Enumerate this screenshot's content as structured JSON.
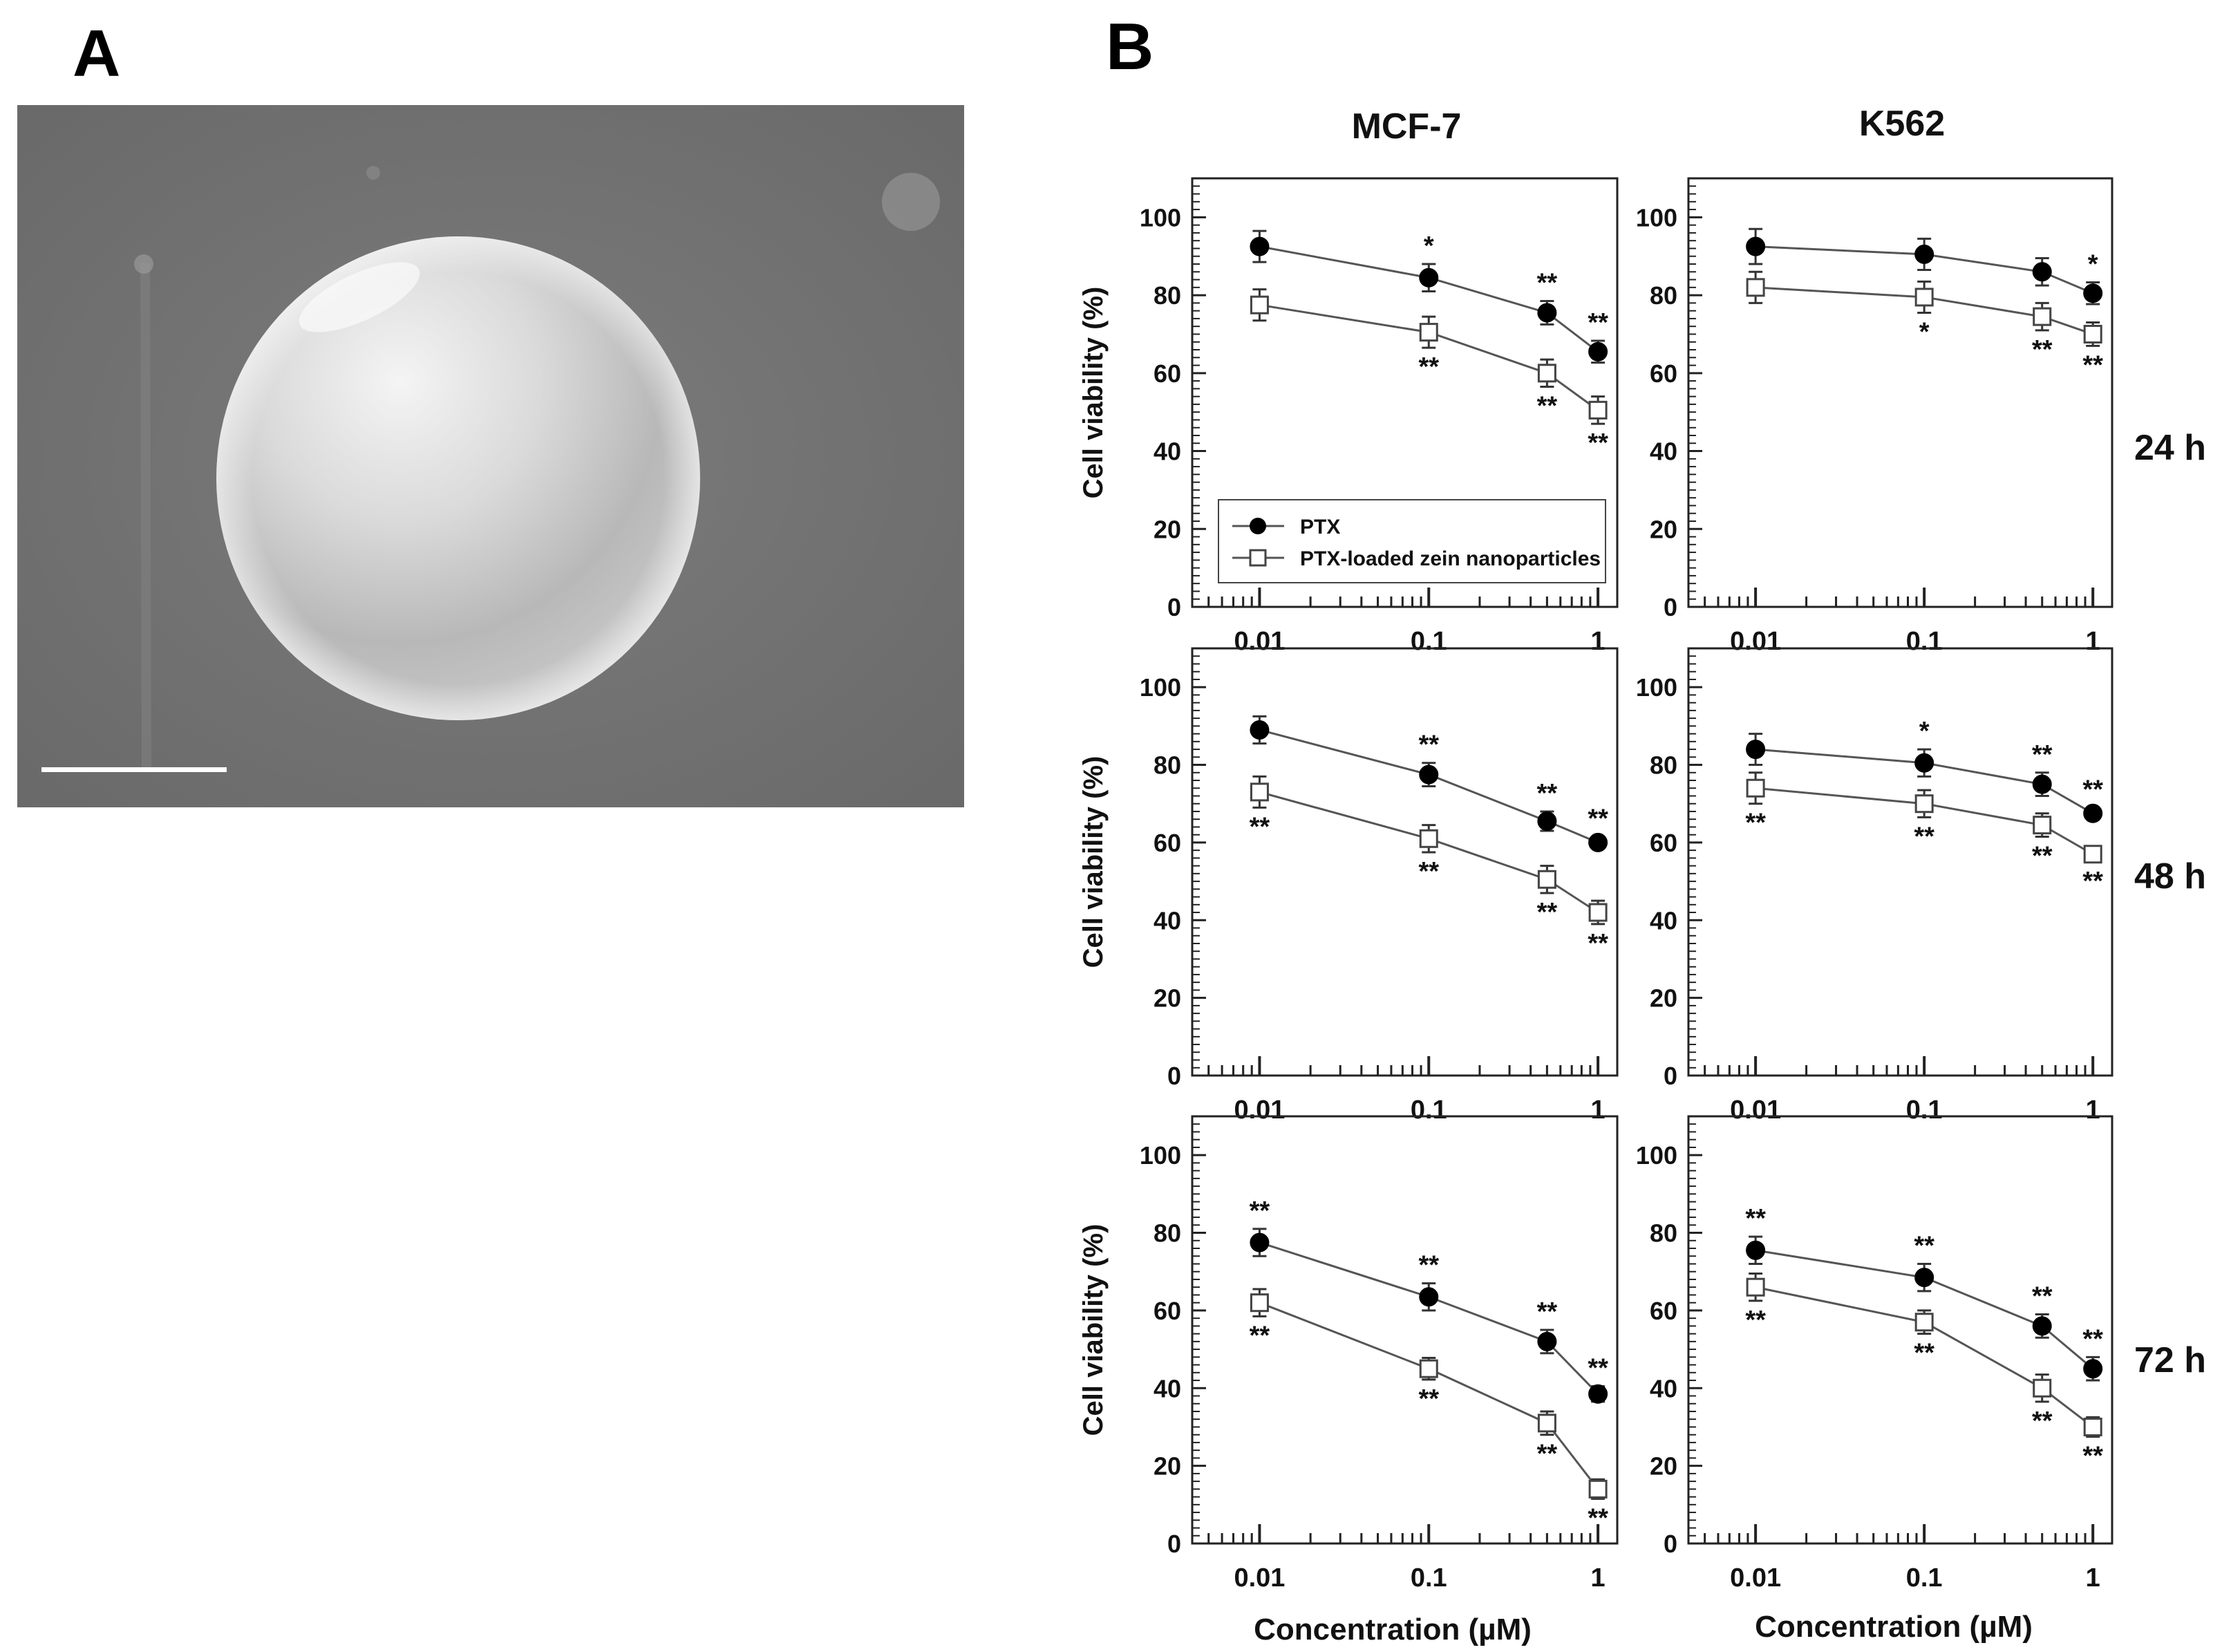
{
  "panel_a": {
    "letter": "A",
    "image_description_icon": "sem-micrograph-sphere-icon",
    "scale_bar": "present"
  },
  "panel_b": {
    "letter": "B",
    "columns": [
      "MCF-7",
      "K562"
    ],
    "rows": [
      "24 h",
      "48 h",
      "72 h"
    ],
    "legend": [
      "PTX",
      "PTX-loaded zein nanoparticles"
    ],
    "xlabel": "Concentration (µM)",
    "ylabel": "Cell viability (%)",
    "colors": {
      "ptx": "#000000",
      "zein": "#ffffff",
      "line": "#555555",
      "text": "#111111"
    }
  },
  "chart_data": [
    {
      "type": "line",
      "title": "MCF-7 24 h",
      "x": [
        0.01,
        0.1,
        0.5,
        1
      ],
      "xscale": "log",
      "xlim": [
        0.004,
        1.3
      ],
      "ylim": [
        0,
        110
      ],
      "xticks": [
        "0.01",
        "0.1",
        "1"
      ],
      "yticks": [
        0,
        20,
        40,
        60,
        80,
        100
      ],
      "xlabel": "",
      "ylabel": "Cell viability (%)",
      "series": [
        {
          "name": "PTX",
          "values": [
            92.5,
            84.5,
            75.5,
            65.5
          ],
          "errors": [
            4,
            3.5,
            3,
            2.8
          ],
          "sig": [
            "",
            "*",
            "**",
            "**"
          ]
        },
        {
          "name": "PTX-loaded zein nanoparticles",
          "values": [
            77.5,
            70.5,
            60,
            50.5
          ],
          "errors": [
            4,
            4,
            3.5,
            3.5
          ],
          "sig": [
            "",
            "**",
            "**",
            "**"
          ]
        }
      ],
      "legend": [
        "PTX",
        "PTX-loaded zein nanoparticles"
      ]
    },
    {
      "type": "line",
      "title": "K562 24 h",
      "x": [
        0.01,
        0.1,
        0.5,
        1
      ],
      "xscale": "log",
      "xlim": [
        0.004,
        1.3
      ],
      "ylim": [
        0,
        110
      ],
      "xticks": [
        "0.01",
        "0.1",
        "1"
      ],
      "yticks": [
        0,
        20,
        40,
        60,
        80,
        100
      ],
      "xlabel": "",
      "ylabel": "",
      "series": [
        {
          "name": "PTX",
          "values": [
            92.5,
            90.5,
            86,
            80.5
          ],
          "errors": [
            4.5,
            4,
            3.5,
            2.8
          ],
          "sig": [
            "",
            "",
            "",
            "*"
          ]
        },
        {
          "name": "PTX-loaded zein nanoparticles",
          "values": [
            82,
            79.5,
            74.5,
            70
          ],
          "errors": [
            4,
            4,
            3.5,
            3
          ],
          "sig": [
            "",
            "*",
            "**",
            "**"
          ]
        }
      ]
    },
    {
      "type": "line",
      "title": "MCF-7 48 h",
      "x": [
        0.01,
        0.1,
        0.5,
        1
      ],
      "xscale": "log",
      "xlim": [
        0.004,
        1.3
      ],
      "ylim": [
        0,
        110
      ],
      "xticks": [
        "0.01",
        "0.1",
        "1"
      ],
      "yticks": [
        0,
        20,
        40,
        60,
        80,
        100
      ],
      "xlabel": "",
      "ylabel": "Cell viability (%)",
      "series": [
        {
          "name": "PTX",
          "values": [
            89,
            77.5,
            65.5,
            60
          ],
          "errors": [
            3.5,
            3,
            2.5,
            1.5
          ],
          "sig": [
            "",
            "**",
            "**",
            "**"
          ]
        },
        {
          "name": "PTX-loaded zein nanoparticles",
          "values": [
            73,
            61,
            50.5,
            42
          ],
          "errors": [
            4,
            3.5,
            3.5,
            3
          ],
          "sig": [
            "**",
            "**",
            "**",
            "**"
          ]
        }
      ]
    },
    {
      "type": "line",
      "title": "K562 48 h",
      "x": [
        0.01,
        0.1,
        0.5,
        1
      ],
      "xscale": "log",
      "xlim": [
        0.004,
        1.3
      ],
      "ylim": [
        0,
        110
      ],
      "xticks": [
        "0.01",
        "0.1",
        "1"
      ],
      "yticks": [
        0,
        20,
        40,
        60,
        80,
        100
      ],
      "xlabel": "",
      "ylabel": "",
      "series": [
        {
          "name": "PTX",
          "values": [
            84,
            80.5,
            75,
            67.5
          ],
          "errors": [
            4,
            3.5,
            3,
            1.5
          ],
          "sig": [
            "",
            "*",
            "**",
            "**"
          ]
        },
        {
          "name": "PTX-loaded zein nanoparticles",
          "values": [
            74,
            70,
            64.5,
            57
          ],
          "errors": [
            4,
            3.5,
            3,
            2
          ],
          "sig": [
            "**",
            "**",
            "**",
            "**"
          ]
        }
      ]
    },
    {
      "type": "line",
      "title": "MCF-7 72 h",
      "x": [
        0.01,
        0.1,
        0.5,
        1
      ],
      "xscale": "log",
      "xlim": [
        0.004,
        1.3
      ],
      "ylim": [
        0,
        110
      ],
      "xticks": [
        "0.01",
        "0.1",
        "1"
      ],
      "yticks": [
        0,
        20,
        40,
        60,
        80,
        100
      ],
      "xlabel": "Concentration (µM)",
      "ylabel": "Cell viability (%)",
      "series": [
        {
          "name": "PTX",
          "values": [
            77.5,
            63.5,
            52,
            38.5
          ],
          "errors": [
            3.5,
            3.5,
            3,
            2
          ],
          "sig": [
            "**",
            "**",
            "**",
            "**"
          ]
        },
        {
          "name": "PTX-loaded zein nanoparticles",
          "values": [
            62,
            45,
            31,
            14
          ],
          "errors": [
            3.5,
            2.8,
            3,
            2.5
          ],
          "sig": [
            "**",
            "**",
            "**",
            "**"
          ]
        }
      ]
    },
    {
      "type": "line",
      "title": "K562 72 h",
      "x": [
        0.01,
        0.1,
        0.5,
        1
      ],
      "xscale": "log",
      "xlim": [
        0.004,
        1.3
      ],
      "ylim": [
        0,
        110
      ],
      "xticks": [
        "0.01",
        "0.1",
        "1"
      ],
      "yticks": [
        0,
        20,
        40,
        60,
        80,
        100
      ],
      "xlabel": "Concentration (µM)",
      "ylabel": "",
      "series": [
        {
          "name": "PTX",
          "values": [
            75.5,
            68.5,
            56,
            45
          ],
          "errors": [
            3.5,
            3.5,
            3,
            3
          ],
          "sig": [
            "**",
            "**",
            "**",
            "**"
          ]
        },
        {
          "name": "PTX-loaded zein nanoparticles",
          "values": [
            66,
            57,
            40,
            30
          ],
          "errors": [
            3.5,
            3,
            3.5,
            2.5
          ],
          "sig": [
            "**",
            "**",
            "**",
            "**"
          ]
        }
      ]
    }
  ]
}
